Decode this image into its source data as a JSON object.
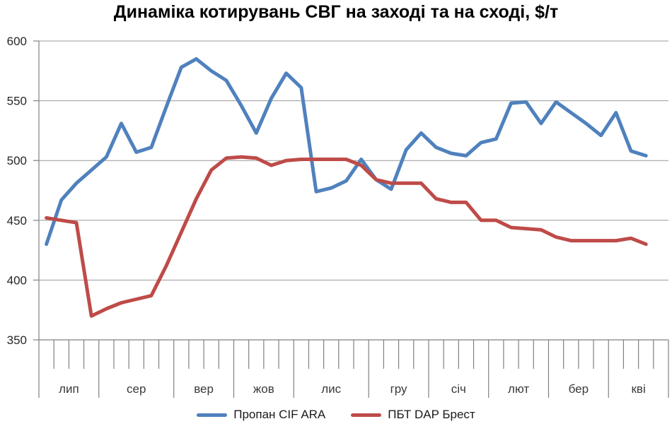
{
  "title": "Динаміка котирувань СВГ на заході та на сході, $/т",
  "chart_data": {
    "type": "line",
    "title": "Динаміка котирувань СВГ на заході та на сході, $/т",
    "ylabel": "",
    "xlabel": "",
    "ylim": [
      350,
      600
    ],
    "yticks": [
      350,
      400,
      450,
      500,
      550,
      600
    ],
    "grid": true,
    "legend_position": "bottom",
    "x_unit": "week",
    "month_labels": [
      "лип",
      "сер",
      "вер",
      "жов",
      "лис",
      "гру",
      "січ",
      "лют",
      "бер",
      "кві"
    ],
    "weeks_per_month": [
      4,
      5,
      4,
      4,
      5,
      4,
      4,
      4,
      4,
      4
    ],
    "series": [
      {
        "name": "Пропан CIF ARA",
        "color": "#4F81BD",
        "values": [
          430,
          467,
          481,
          492,
          503,
          531,
          507,
          511,
          545,
          578,
          585,
          575,
          567,
          546,
          523,
          552,
          573,
          561,
          474,
          477,
          483,
          501,
          484,
          476,
          509,
          523,
          511,
          506,
          504,
          515,
          518,
          548,
          549,
          531,
          549,
          540,
          531,
          521,
          540,
          508,
          504
        ]
      },
      {
        "name": "ПБТ DAP Брест",
        "color": "#BE4B48",
        "values": [
          452,
          450,
          448,
          370,
          376,
          381,
          384,
          387,
          412,
          440,
          468,
          492,
          502,
          503,
          502,
          496,
          500,
          501,
          501,
          501,
          501,
          496,
          484,
          481,
          481,
          481,
          468,
          465,
          465,
          450,
          450,
          444,
          443,
          442,
          436,
          433,
          433,
          433,
          433,
          435,
          430
        ]
      }
    ],
    "axis_color": "#808080",
    "gridline_color": "#999999",
    "tick_label_color": "#262626",
    "month_label_color": "#3a3a3a"
  }
}
